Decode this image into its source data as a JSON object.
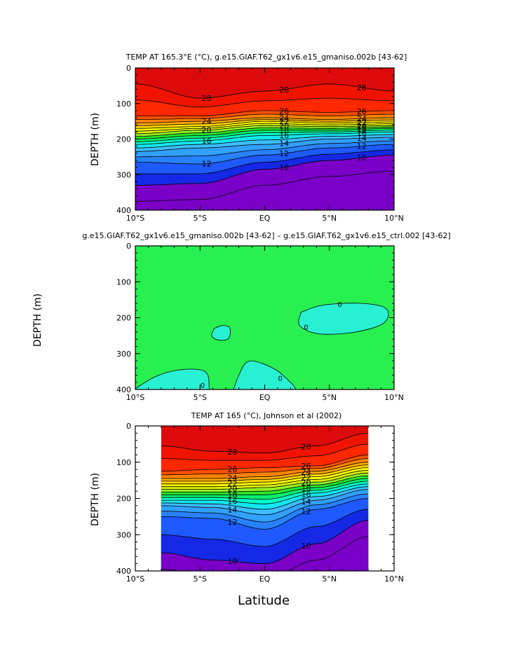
{
  "figure": {
    "xlabel": "Latitude"
  },
  "chart_data": [
    {
      "type": "contour",
      "title": "TEMP AT 165.3°E (°C), g.e15.GIAF.T62_gx1v6.e15_gmaniso.002b ‌[43-62]",
      "ylabel": "DEPTH (m)",
      "xlabel": "",
      "x_ticks": [
        "10°S",
        "5°S",
        "EQ",
        "5°N",
        "10°N"
      ],
      "x_tick_values": [
        -10,
        -5,
        0,
        5,
        10
      ],
      "y_ticks": [
        "0",
        "100",
        "200",
        "300",
        "400"
      ],
      "y_tick_values": [
        0,
        100,
        200,
        300,
        400
      ],
      "xlim": [
        -10,
        10
      ],
      "ylim": [
        0,
        400
      ],
      "data_xlim": [
        -10,
        10
      ],
      "contour_interval": 1,
      "fill_levels": [
        28,
        27.5,
        27,
        26,
        25,
        24,
        23,
        22,
        21,
        20,
        19,
        18,
        17,
        16,
        15,
        14,
        13,
        12,
        11,
        10,
        9.5
      ],
      "isotherm_depth_lat": [
        -10,
        -5,
        0,
        5,
        10
      ],
      "isotherm_depths": [
        {
          "level": 28,
          "depths": [
            45,
            85,
            65,
            45,
            65
          ]
        },
        {
          "level": 26,
          "depths": [
            135,
            135,
            120,
            125,
            120
          ]
        },
        {
          "level": 24,
          "depths": [
            155,
            150,
            140,
            145,
            140
          ]
        },
        {
          "level": 22,
          "depths": [
            170,
            165,
            150,
            155,
            152
          ]
        },
        {
          "level": 20,
          "depths": [
            185,
            175,
            162,
            165,
            162
          ]
        },
        {
          "level": 18,
          "depths": [
            200,
            190,
            175,
            175,
            170
          ]
        },
        {
          "level": 16,
          "depths": [
            215,
            205,
            190,
            185,
            180
          ]
        },
        {
          "level": 14,
          "depths": [
            235,
            225,
            215,
            200,
            195
          ]
        },
        {
          "level": 12,
          "depths": [
            265,
            270,
            245,
            225,
            215
          ]
        },
        {
          "level": 10,
          "depths": [
            330,
            325,
            285,
            260,
            245
          ]
        }
      ],
      "labels": [
        "28",
        "26",
        "24",
        "22",
        "20",
        "18",
        "16",
        "14",
        "12",
        "10"
      ]
    },
    {
      "type": "contour",
      "title": "g.e15.GIAF.T62_gx1v6.e15_gmaniso.002b ‌[43-62] – g.e15.GIAF.T62_gx1v6.e15_ctrl.002 ‌[43-62]",
      "ylabel": "DEPTH (m)",
      "xlabel": "",
      "x_ticks": [
        "10°S",
        "5°S",
        "EQ",
        "5°N",
        "10°N"
      ],
      "x_tick_values": [
        -10,
        -5,
        0,
        5,
        10
      ],
      "y_ticks": [
        "0",
        "100",
        "200",
        "300",
        "400"
      ],
      "y_tick_values": [
        0,
        100,
        200,
        300,
        400
      ],
      "xlim": [
        -10,
        10
      ],
      "ylim": [
        0,
        400
      ],
      "background_value": "> 0",
      "regions": [
        {
          "name": "negative-anomaly-north",
          "center": [
            6,
            200
          ],
          "label": "0"
        },
        {
          "name": "negative-anomaly-south-small",
          "center": [
            -3.5,
            245
          ],
          "label": ""
        },
        {
          "name": "negative-anomaly-south-bottom",
          "center": [
            -7,
            380
          ],
          "label": "0"
        },
        {
          "name": "negative-anomaly-center-bottom",
          "center": [
            -1,
            370
          ],
          "label": "0"
        }
      ],
      "labels": [
        "0",
        "0",
        "0",
        "0"
      ]
    },
    {
      "type": "contour",
      "title": "TEMP AT 165 (°C), Johnson et al (2002)",
      "ylabel": "DEPTH (m)",
      "xlabel": "Latitude",
      "x_ticks": [
        "10°S",
        "5°S",
        "EQ",
        "5°N",
        "10°N"
      ],
      "x_tick_values": [
        -10,
        -5,
        0,
        5,
        10
      ],
      "y_ticks": [
        "0",
        "100",
        "200",
        "300",
        "400"
      ],
      "y_tick_values": [
        0,
        100,
        200,
        300,
        400
      ],
      "xlim": [
        -10,
        10
      ],
      "ylim": [
        0,
        400
      ],
      "data_xlim": [
        -8,
        8
      ],
      "contour_interval": 1,
      "isotherm_depth_lat": [
        -8,
        -4,
        0,
        4,
        8
      ],
      "isotherm_depths": [
        {
          "level": 28,
          "depths": [
            55,
            70,
            75,
            55,
            20
          ]
        },
        {
          "level": 26,
          "depths": [
            125,
            120,
            115,
            110,
            80
          ]
        },
        {
          "level": 24,
          "depths": [
            145,
            145,
            140,
            125,
            100
          ]
        },
        {
          "level": 22,
          "depths": [
            160,
            160,
            155,
            140,
            115
          ]
        },
        {
          "level": 20,
          "depths": [
            175,
            175,
            170,
            155,
            130
          ]
        },
        {
          "level": 18,
          "depths": [
            190,
            190,
            190,
            170,
            145
          ]
        },
        {
          "level": 16,
          "depths": [
            205,
            205,
            215,
            185,
            160
          ]
        },
        {
          "level": 14,
          "depths": [
            220,
            225,
            245,
            205,
            175
          ]
        },
        {
          "level": 12,
          "depths": [
            250,
            255,
            285,
            230,
            200
          ]
        },
        {
          "level": 10,
          "depths": [
            350,
            370,
            380,
            325,
            260
          ]
        }
      ],
      "labels": [
        "28",
        "26",
        "24",
        "22",
        "20",
        "18",
        "16",
        "14",
        "12",
        "10"
      ]
    }
  ],
  "colors": {
    "scale": [
      "#7a00c8",
      "#1428e6",
      "#1e5aff",
      "#2882ff",
      "#32a0ff",
      "#3cbeff",
      "#14e6f0",
      "#00ffc8",
      "#00f070",
      "#28e628",
      "#96f028",
      "#dcf000",
      "#ffff00",
      "#ffd700",
      "#ffaa00",
      "#ff8200",
      "#ff5000",
      "#ff2800",
      "#f01400",
      "#dc0a0a"
    ],
    "diff_positive": "#28f050",
    "diff_negative": "#28f0d2",
    "line": "#000000"
  }
}
